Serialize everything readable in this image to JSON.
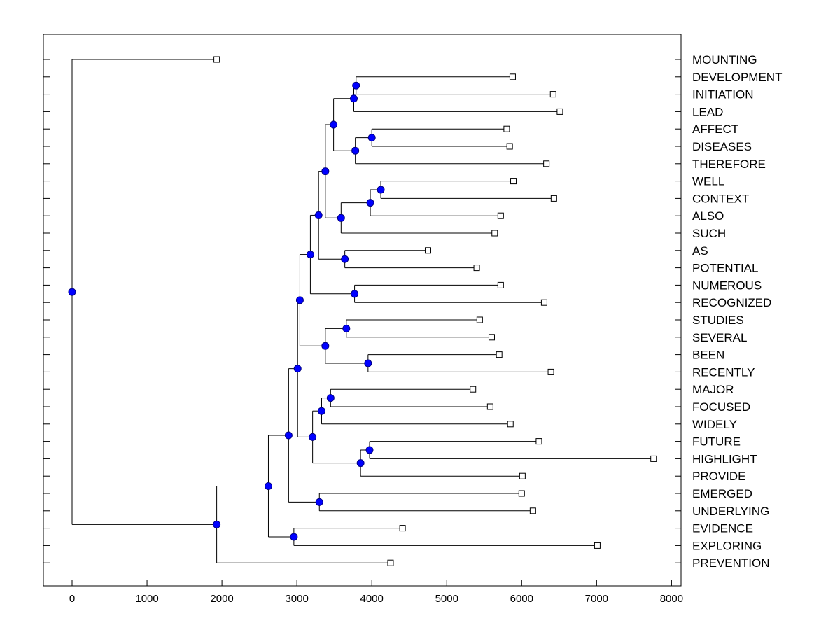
{
  "chart_data": {
    "type": "dendrogram",
    "title": "",
    "xlabel": "",
    "ylabel": "",
    "xlim": [
      -400,
      8000
    ],
    "x_ticks": [
      0,
      1000,
      2000,
      3000,
      4000,
      5000,
      6000,
      7000,
      8000
    ],
    "tick_labels": [
      "0",
      "1000",
      "2000",
      "3000",
      "4000",
      "5000",
      "6000",
      "7000",
      "8000"
    ],
    "leaves": [
      {
        "label": "MOUNTING",
        "value": 1930
      },
      {
        "label": "DEVELOPMENT",
        "value": 5880
      },
      {
        "label": "INITIATION",
        "value": 6420
      },
      {
        "label": "LEAD",
        "value": 6510
      },
      {
        "label": "AFFECT",
        "value": 5800
      },
      {
        "label": "DISEASES",
        "value": 5840
      },
      {
        "label": "THEREFORE",
        "value": 6330
      },
      {
        "label": "WELL",
        "value": 5890
      },
      {
        "label": "CONTEXT",
        "value": 6430
      },
      {
        "label": "ALSO",
        "value": 5720
      },
      {
        "label": "SUCH",
        "value": 5640
      },
      {
        "label": "AS",
        "value": 4750
      },
      {
        "label": "POTENTIAL",
        "value": 5400
      },
      {
        "label": "NUMEROUS",
        "value": 5720
      },
      {
        "label": "RECOGNIZED",
        "value": 6300
      },
      {
        "label": "STUDIES",
        "value": 5440
      },
      {
        "label": "SEVERAL",
        "value": 5600
      },
      {
        "label": "BEEN",
        "value": 5700
      },
      {
        "label": "RECENTLY",
        "value": 6390
      },
      {
        "label": "MAJOR",
        "value": 5350
      },
      {
        "label": "FOCUSED",
        "value": 5580
      },
      {
        "label": "WIDELY",
        "value": 5850
      },
      {
        "label": "FUTURE",
        "value": 6230
      },
      {
        "label": "HIGHLIGHT",
        "value": 7760
      },
      {
        "label": "PROVIDE",
        "value": 6010
      },
      {
        "label": "EMERGED",
        "value": 6000
      },
      {
        "label": "UNDERLYING",
        "value": 6150
      },
      {
        "label": "EVIDENCE",
        "value": 4410
      },
      {
        "label": "EXPLORING",
        "value": 7010
      },
      {
        "label": "PREVENTION",
        "value": 4250
      }
    ],
    "merges": [
      {
        "id": "n1",
        "value": 3790,
        "children": [
          "L1",
          "L2"
        ]
      },
      {
        "id": "n2",
        "value": 3760,
        "children": [
          "n1",
          "L3"
        ]
      },
      {
        "id": "n3",
        "value": 4000,
        "children": [
          "L4",
          "L5"
        ]
      },
      {
        "id": "n4",
        "value": 3780,
        "children": [
          "n3",
          "L6"
        ]
      },
      {
        "id": "n5",
        "value": 3490,
        "children": [
          "n2",
          "n4"
        ]
      },
      {
        "id": "n6",
        "value": 4120,
        "children": [
          "L7",
          "L8"
        ]
      },
      {
        "id": "n7",
        "value": 3980,
        "children": [
          "n6",
          "L9"
        ]
      },
      {
        "id": "n8",
        "value": 3590,
        "children": [
          "n7",
          "L10"
        ]
      },
      {
        "id": "n9",
        "value": 3380,
        "children": [
          "n5",
          "n8"
        ]
      },
      {
        "id": "n10",
        "value": 3640,
        "children": [
          "L11",
          "L12"
        ]
      },
      {
        "id": "n11",
        "value": 3290,
        "children": [
          "n9",
          "n10"
        ]
      },
      {
        "id": "n12",
        "value": 3770,
        "children": [
          "L13",
          "L14"
        ]
      },
      {
        "id": "n13",
        "value": 3180,
        "children": [
          "n11",
          "n12"
        ]
      },
      {
        "id": "n14",
        "value": 3660,
        "children": [
          "L15",
          "L16"
        ]
      },
      {
        "id": "n15",
        "value": 3950,
        "children": [
          "L17",
          "L18"
        ]
      },
      {
        "id": "n16",
        "value": 3380,
        "children": [
          "n14",
          "n15"
        ]
      },
      {
        "id": "n17",
        "value": 3040,
        "children": [
          "n13",
          "n16"
        ]
      },
      {
        "id": "n18",
        "value": 3450,
        "children": [
          "L19",
          "L20"
        ]
      },
      {
        "id": "n19",
        "value": 3330,
        "children": [
          "n18",
          "L21"
        ]
      },
      {
        "id": "n20",
        "value": 3970,
        "children": [
          "L22",
          "L23"
        ]
      },
      {
        "id": "n21",
        "value": 3850,
        "children": [
          "n20",
          "L24"
        ]
      },
      {
        "id": "n22",
        "value": 3210,
        "children": [
          "n19",
          "n21"
        ]
      },
      {
        "id": "n23",
        "value": 3010,
        "children": [
          "n17",
          "n22"
        ]
      },
      {
        "id": "n24",
        "value": 3300,
        "children": [
          "L25",
          "L26"
        ]
      },
      {
        "id": "n25",
        "value": 2890,
        "children": [
          "n23",
          "n24"
        ]
      },
      {
        "id": "n26",
        "value": 2960,
        "children": [
          "L27",
          "L28"
        ]
      },
      {
        "id": "n27",
        "value": 2620,
        "children": [
          "n25",
          "n26"
        ]
      },
      {
        "id": "n28",
        "value": 1930,
        "children": [
          "n27",
          "L29"
        ]
      },
      {
        "id": "n29",
        "value": 0,
        "children": [
          "L0",
          "n28"
        ]
      }
    ]
  }
}
